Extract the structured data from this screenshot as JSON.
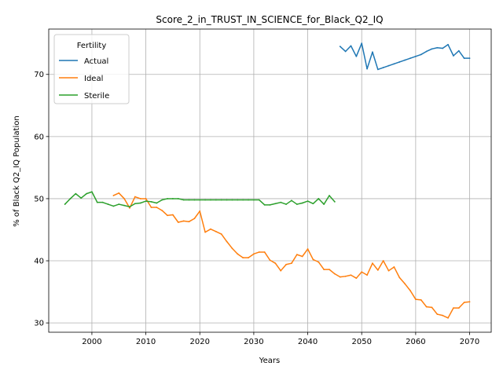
{
  "chart_data": {
    "type": "line",
    "title": "Score_2_in_TRUST_IN_SCIENCE_for_Black_Q2_IQ",
    "xlabel": "Years",
    "ylabel": "% of Black Q2_IQ Population",
    "xlim": [
      1992,
      2074
    ],
    "ylim": [
      28.5,
      77.3
    ],
    "xticks": [
      2000,
      2010,
      2020,
      2030,
      2040,
      2050,
      2060,
      2070
    ],
    "yticks": [
      30,
      40,
      50,
      60,
      70
    ],
    "grid": true,
    "legend": {
      "title": "Fertility",
      "placement": "upper-left"
    },
    "series": [
      {
        "name": "Actual",
        "color": "#1f77b4",
        "x": [
          2046,
          2047,
          2048,
          2049,
          2050,
          2051,
          2052,
          2053,
          2054,
          2055,
          2056,
          2057,
          2058,
          2059,
          2060,
          2061,
          2062,
          2063,
          2064,
          2065,
          2066,
          2067,
          2068,
          2069,
          2070
        ],
        "y": [
          74.5,
          73.7,
          74.6,
          72.9,
          75.0,
          70.9,
          73.6,
          70.8,
          71.1,
          71.4,
          71.7,
          72.0,
          72.3,
          72.6,
          72.9,
          73.2,
          73.7,
          74.1,
          74.3,
          74.2,
          74.8,
          73.0,
          73.8,
          72.6,
          72.6
        ]
      },
      {
        "name": "Ideal",
        "color": "#ff7f0e",
        "x": [
          2004,
          2005,
          2006,
          2007,
          2008,
          2009,
          2010,
          2011,
          2012,
          2013,
          2014,
          2015,
          2016,
          2017,
          2018,
          2019,
          2020,
          2021,
          2022,
          2023,
          2024,
          2025,
          2026,
          2027,
          2028,
          2029,
          2030,
          2031,
          2032,
          2033,
          2034,
          2035,
          2036,
          2037,
          2038,
          2039,
          2040,
          2041,
          2042,
          2043,
          2044,
          2045,
          2046,
          2047,
          2048,
          2049,
          2050,
          2051,
          2052,
          2053,
          2054,
          2055,
          2056,
          2057,
          2058,
          2059,
          2060,
          2061,
          2062,
          2063,
          2064,
          2065,
          2066,
          2067,
          2068,
          2069,
          2070
        ],
        "y": [
          50.5,
          50.9,
          50.0,
          48.5,
          50.3,
          50.0,
          50.0,
          48.6,
          48.6,
          48.1,
          47.3,
          47.4,
          46.2,
          46.4,
          46.3,
          46.8,
          48.0,
          44.6,
          45.1,
          44.7,
          44.3,
          43.1,
          42.0,
          41.1,
          40.5,
          40.5,
          41.1,
          41.4,
          41.4,
          40.1,
          39.6,
          38.4,
          39.4,
          39.6,
          41.0,
          40.7,
          41.9,
          40.2,
          39.8,
          38.6,
          38.6,
          37.9,
          37.4,
          37.5,
          37.7,
          37.2,
          38.2,
          37.7,
          39.6,
          38.5,
          40.0,
          38.4,
          39.0,
          37.3,
          36.3,
          35.2,
          33.8,
          33.7,
          32.6,
          32.5,
          31.4,
          31.2,
          30.8,
          32.4,
          32.4,
          33.3,
          33.4
        ]
      },
      {
        "name": "Sterile",
        "color": "#2ca02c",
        "x": [
          1995,
          1996,
          1997,
          1998,
          1999,
          2000,
          2001,
          2002,
          2003,
          2004,
          2005,
          2006,
          2007,
          2008,
          2009,
          2010,
          2011,
          2012,
          2013,
          2014,
          2015,
          2016,
          2017,
          2018,
          2019,
          2020,
          2021,
          2022,
          2023,
          2024,
          2025,
          2026,
          2027,
          2028,
          2029,
          2030,
          2031,
          2032,
          2033,
          2034,
          2035,
          2036,
          2037,
          2038,
          2039,
          2040,
          2041,
          2042,
          2043,
          2044,
          2045
        ],
        "y": [
          49.1,
          50.0,
          50.8,
          50.1,
          50.8,
          51.1,
          49.4,
          49.4,
          49.1,
          48.8,
          49.1,
          48.9,
          48.7,
          49.2,
          49.3,
          49.6,
          49.5,
          49.3,
          49.8,
          50.0,
          50.0,
          50.0,
          49.8,
          49.8,
          49.8,
          49.8,
          49.8,
          49.8,
          49.8,
          49.8,
          49.8,
          49.8,
          49.8,
          49.8,
          49.8,
          49.8,
          49.8,
          49.0,
          49.0,
          49.2,
          49.4,
          49.1,
          49.7,
          49.1,
          49.3,
          49.6,
          49.2,
          50.0,
          49.1,
          50.5,
          49.5
        ]
      }
    ]
  }
}
